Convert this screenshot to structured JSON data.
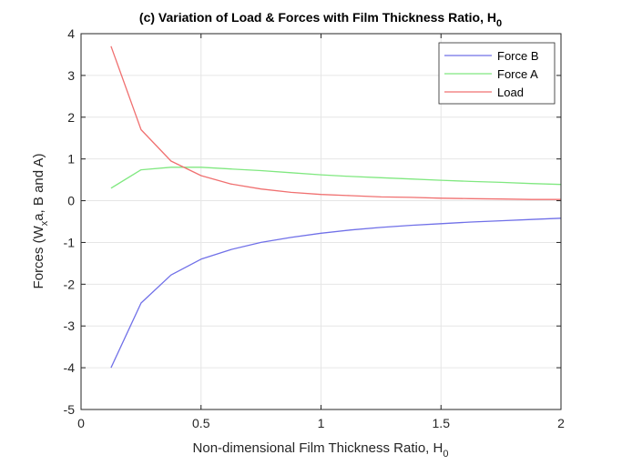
{
  "chart_data": {
    "type": "line",
    "title": "(c) Variation of Load & Forces with Film Thickness Ratio, H",
    "title_subscript": "0",
    "xlabel": "Non-dimensional Film Thickness Ratio, H",
    "xlabel_subscript": "0",
    "ylabel_parts": [
      "Forces (W",
      "x",
      "a, B and A)"
    ],
    "xlim": [
      0,
      2
    ],
    "ylim": [
      -5,
      4
    ],
    "xticks": [
      0,
      0.5,
      1,
      1.5,
      2
    ],
    "xtick_labels": [
      "0",
      "0.5",
      "1",
      "1.5",
      "2"
    ],
    "yticks": [
      -5,
      -4,
      -3,
      -2,
      -1,
      0,
      1,
      2,
      3,
      4
    ],
    "ytick_labels": [
      "-5",
      "-4",
      "-3",
      "-2",
      "-1",
      "0",
      "1",
      "2",
      "3",
      "4"
    ],
    "grid": true,
    "legend_position": "top-right",
    "x": [
      0.125,
      0.25,
      0.375,
      0.5,
      0.625,
      0.75,
      0.875,
      1.0,
      1.125,
      1.25,
      1.375,
      1.5,
      1.625,
      1.75,
      1.875,
      2.0
    ],
    "series": [
      {
        "name": "Force B",
        "color": "#7070e8",
        "values": [
          -4.0,
          -2.45,
          -1.78,
          -1.4,
          -1.17,
          -1.0,
          -0.88,
          -0.78,
          -0.7,
          -0.64,
          -0.59,
          -0.55,
          -0.51,
          -0.48,
          -0.45,
          -0.42
        ]
      },
      {
        "name": "Force A",
        "color": "#80e880",
        "values": [
          0.3,
          0.74,
          0.8,
          0.8,
          0.76,
          0.72,
          0.67,
          0.62,
          0.58,
          0.55,
          0.52,
          0.49,
          0.46,
          0.44,
          0.41,
          0.39
        ]
      },
      {
        "name": "Load",
        "color": "#f07070",
        "values": [
          3.7,
          1.7,
          0.95,
          0.6,
          0.4,
          0.28,
          0.2,
          0.15,
          0.12,
          0.09,
          0.08,
          0.06,
          0.05,
          0.04,
          0.03,
          0.03
        ]
      }
    ]
  }
}
